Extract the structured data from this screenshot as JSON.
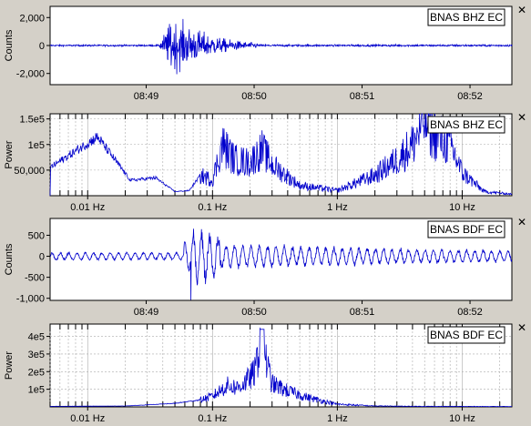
{
  "panels": [
    {
      "id": "bhz-waveform",
      "station_label": "BNAS BHZ EC",
      "close_glyph": "✕",
      "close_icon": "close-icon",
      "ylabel": "Counts",
      "yticks": [
        {
          "v": 2000,
          "label": "2,000"
        },
        {
          "v": 0,
          "label": "0"
        },
        {
          "v": -2000,
          "label": "-2,000"
        }
      ],
      "xticks": [
        {
          "v": 0.25,
          "label": "08:49"
        },
        {
          "v": 0.5,
          "label": "08:50"
        },
        {
          "v": 0.75,
          "label": "08:51"
        },
        {
          "v": 1.0,
          "label": "08:52"
        }
      ]
    },
    {
      "id": "bhz-spectrum",
      "station_label": "BNAS BHZ EC",
      "close_glyph": "✕",
      "close_icon": "close-icon",
      "ylabel": "Power",
      "yticks": [
        {
          "v": 150000,
          "label": "1.5e5"
        },
        {
          "v": 100000,
          "label": "1e5"
        },
        {
          "v": 50000,
          "label": "50,000"
        }
      ],
      "xticks": [
        {
          "v": 0.01,
          "label": "0.01 Hz"
        },
        {
          "v": 0.1,
          "label": "0.1 Hz"
        },
        {
          "v": 1,
          "label": "1 Hz"
        },
        {
          "v": 10,
          "label": "10 Hz"
        }
      ]
    },
    {
      "id": "bdf-waveform",
      "station_label": "BNAS BDF EC",
      "close_glyph": "✕",
      "close_icon": "close-icon",
      "ylabel": "Counts",
      "yticks": [
        {
          "v": 500,
          "label": "500"
        },
        {
          "v": 0,
          "label": "0"
        },
        {
          "v": -500,
          "label": "-500"
        },
        {
          "v": -1000,
          "label": "-1,000"
        }
      ],
      "xticks": [
        {
          "v": 0.25,
          "label": "08:49"
        },
        {
          "v": 0.5,
          "label": "08:50"
        },
        {
          "v": 0.75,
          "label": "08:51"
        },
        {
          "v": 1.0,
          "label": "08:52"
        }
      ]
    },
    {
      "id": "bdf-spectrum",
      "station_label": "BNAS BDF EC",
      "close_glyph": "✕",
      "close_icon": "close-icon",
      "ylabel": "Power",
      "yticks": [
        {
          "v": 400000,
          "label": "4e5"
        },
        {
          "v": 300000,
          "label": "3e5"
        },
        {
          "v": 200000,
          "label": "2e5"
        },
        {
          "v": 100000,
          "label": "1e5"
        }
      ],
      "xticks": [
        {
          "v": 0.01,
          "label": "0.01 Hz"
        },
        {
          "v": 0.1,
          "label": "0.1 Hz"
        },
        {
          "v": 1,
          "label": "1 Hz"
        },
        {
          "v": 10,
          "label": "10 Hz"
        }
      ]
    }
  ],
  "chart_data": [
    {
      "type": "line",
      "title": "BNAS BHZ EC",
      "xlabel": "",
      "ylabel": "Counts",
      "x_axis": "time",
      "x_tick_labels": [
        "08:49",
        "08:50",
        "08:51",
        "08:52"
      ],
      "ylim": [
        -2800,
        2800
      ],
      "grid": false,
      "color": "#0000cc",
      "series": [
        {
          "x": [
            "08:48:30",
            "08:49:30",
            "08:49:45",
            "08:49:53",
            "08:50:05",
            "08:50:20",
            "08:50:45",
            "08:51:30",
            "08:52:45"
          ],
          "envelope": [
            60,
            80,
            400,
            2800,
            2000,
            900,
            300,
            120,
            80
          ]
        }
      ]
    },
    {
      "type": "line",
      "title": "BNAS BHZ EC",
      "xlabel": "",
      "ylabel": "Power",
      "x_scale": "log",
      "x_tick_labels": [
        "0.01 Hz",
        "0.1 Hz",
        "1 Hz",
        "10 Hz"
      ],
      "xlim": [
        0.005,
        25
      ],
      "ylim": [
        0,
        150000
      ],
      "grid": true,
      "color": "#0000cc",
      "series": [
        {
          "x": [
            0.005,
            0.012,
            0.022,
            0.035,
            0.05,
            0.065,
            0.08,
            0.1,
            0.12,
            0.15,
            0.2,
            0.25,
            0.3,
            0.5,
            1,
            2,
            3,
            4,
            5,
            6,
            8,
            10,
            15,
            25
          ],
          "y": [
            55000,
            115000,
            30000,
            35000,
            8000,
            10000,
            40000,
            30000,
            100000,
            70000,
            65000,
            90000,
            60000,
            20000,
            10000,
            40000,
            70000,
            100000,
            150000,
            120000,
            100000,
            45000,
            8000,
            3000
          ]
        }
      ]
    },
    {
      "type": "line",
      "title": "BNAS BDF EC",
      "xlabel": "",
      "ylabel": "Counts",
      "x_axis": "time",
      "x_tick_labels": [
        "08:49",
        "08:50",
        "08:51",
        "08:52"
      ],
      "ylim": [
        -1050,
        900
      ],
      "grid": false,
      "color": "#0000cc",
      "series": [
        {
          "x": [
            "08:48:30",
            "08:49:40",
            "08:49:50",
            "08:49:55",
            "08:50:10",
            "08:50:30",
            "08:51:00",
            "08:52:00",
            "08:52:45"
          ],
          "envelope": [
            120,
            160,
            600,
            1050,
            900,
            450,
            300,
            220,
            250
          ]
        }
      ]
    },
    {
      "type": "line",
      "title": "BNAS BDF EC",
      "xlabel": "",
      "ylabel": "Power",
      "x_scale": "log",
      "x_tick_labels": [
        "0.01 Hz",
        "0.1 Hz",
        "1 Hz",
        "10 Hz"
      ],
      "xlim": [
        0.005,
        25
      ],
      "ylim": [
        0,
        460000
      ],
      "grid": true,
      "color": "#0000cc",
      "series": [
        {
          "x": [
            0.005,
            0.02,
            0.05,
            0.08,
            0.1,
            0.13,
            0.16,
            0.19,
            0.22,
            0.25,
            0.27,
            0.3,
            0.4,
            0.6,
            1,
            2,
            5,
            25
          ],
          "y": [
            3000,
            5000,
            20000,
            40000,
            60000,
            120000,
            110000,
            150000,
            200000,
            450000,
            250000,
            130000,
            90000,
            50000,
            15000,
            5000,
            3000,
            2000
          ]
        }
      ]
    }
  ]
}
